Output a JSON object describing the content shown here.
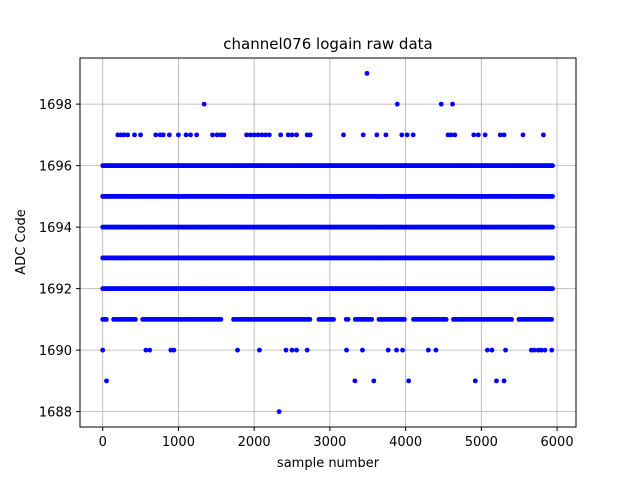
{
  "chart_data": {
    "type": "scatter",
    "title": "channel076 logain raw data",
    "xlabel": "sample number",
    "ylabel": "ADC Code",
    "xlim": [
      -300,
      6250
    ],
    "ylim": [
      1687.5,
      1699.5
    ],
    "xticks": [
      0,
      1000,
      2000,
      3000,
      4000,
      5000,
      6000
    ],
    "yticks": [
      1688,
      1690,
      1692,
      1694,
      1696,
      1698
    ],
    "grid": true,
    "marker_color": "#0000ff",
    "x_max_sample": 5950,
    "dense_levels": [
      1691,
      1692,
      1693,
      1694,
      1695,
      1696
    ],
    "sparse_points": {
      "1699": [
        3490
      ],
      "1698": [
        1340,
        3890,
        4470,
        4620
      ],
      "1697": [
        200,
        240,
        280,
        330,
        420,
        500,
        700,
        760,
        800,
        880,
        1000,
        1100,
        1160,
        1240,
        1450,
        1510,
        1560,
        1600,
        1900,
        1950,
        2000,
        2050,
        2100,
        2150,
        2200,
        2350,
        2450,
        2500,
        2560,
        2700,
        2740,
        3180,
        3440,
        3620,
        3740,
        3950,
        4020,
        4100,
        4560,
        4600,
        4650,
        4900,
        4960,
        5050,
        5250,
        5300,
        5550,
        5820
      ],
      "1690": [
        0,
        570,
        620,
        900,
        940,
        1780,
        2070,
        2420,
        2500,
        2560,
        2700,
        3220,
        3430,
        3770,
        3880,
        3960,
        4300,
        4400,
        5080,
        5140,
        5320,
        5660,
        5700,
        5750,
        5790,
        5840,
        5930
      ],
      "1689": [
        50,
        3330,
        3580,
        4040,
        4920,
        5200,
        5300
      ],
      "1688": [
        2330
      ]
    },
    "sparse_1691_gaps": [
      [
        60,
        140
      ],
      [
        450,
        520
      ],
      [
        1580,
        1720
      ],
      [
        2760,
        2850
      ],
      [
        3050,
        3200
      ],
      [
        3250,
        3330
      ],
      [
        3560,
        3640
      ],
      [
        4000,
        4100
      ],
      [
        4560,
        4620
      ],
      [
        5420,
        5480
      ]
    ]
  }
}
